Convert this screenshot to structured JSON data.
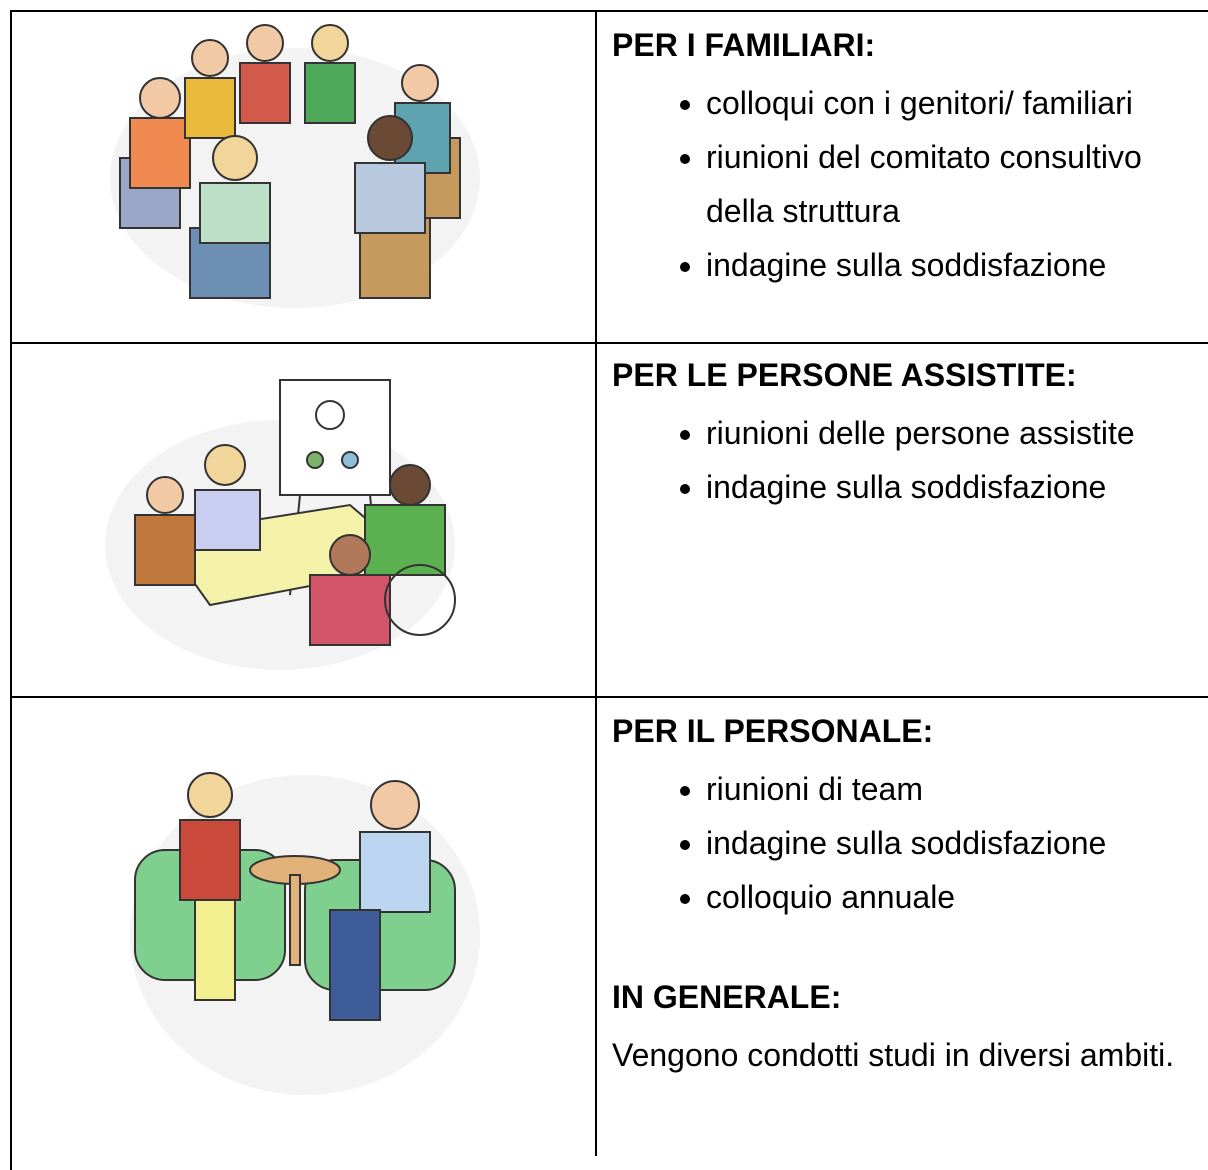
{
  "rows": [
    {
      "heading": "PER I FAMILIARI:",
      "items": [
        "colloqui con i genitori/ familiari",
        "riunioni del comitato consultivo della struttura",
        "indagine sulla soddisfazione"
      ]
    },
    {
      "heading": "PER LE PERSONE ASSISTITE:",
      "items": [
        "riunioni delle persone assistite",
        "indagine sulla soddisfazione"
      ]
    },
    {
      "heading": "PER IL PERSONALE:",
      "items": [
        "riunioni di team",
        "indagine sulla soddisfazione",
        "colloquio annuale"
      ]
    }
  ],
  "general": {
    "heading": "IN GENERALE:",
    "text": "Vengono condotti studi in diversi ambiti."
  }
}
